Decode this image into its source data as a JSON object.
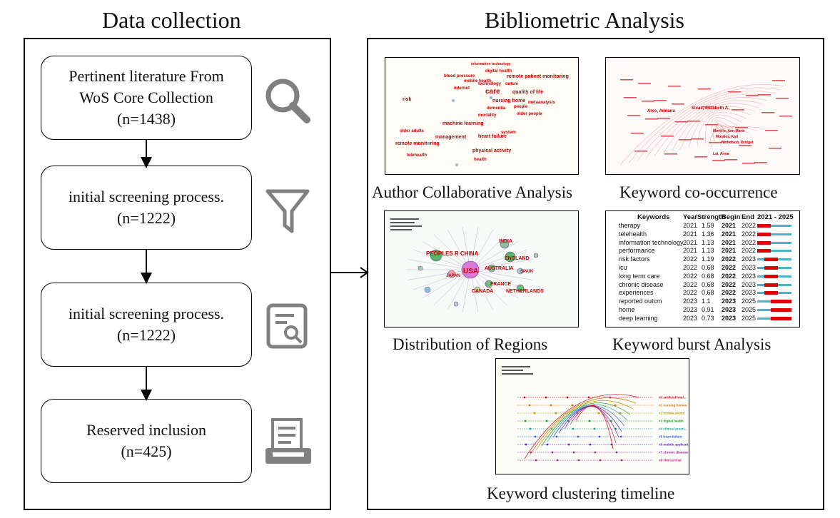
{
  "left": {
    "title": "Data collection",
    "steps": [
      {
        "lines": [
          "Pertinent literature From",
          "WoS Core Collection",
          "(n=1438)"
        ],
        "icon": "magnifier-icon"
      },
      {
        "lines": [
          "initial screening process.",
          "(n=1222)"
        ],
        "icon": "funnel-icon"
      },
      {
        "lines": [
          "initial screening process.",
          "(n=1222)"
        ],
        "icon": "document-search-icon"
      },
      {
        "lines": [
          "Reserved inclusion",
          "(n=425)"
        ],
        "icon": "printer-document-icon"
      }
    ]
  },
  "right": {
    "title": "Bibliometric Analysis",
    "captions": {
      "author": "Author Collaborative Analysis",
      "keyword_cooc": "Keyword co-occurrence",
      "regions": "Distribution of Regions",
      "burst": "Keyword burst Analysis",
      "timeline": "Keyword clustering timeline"
    },
    "author_terms": [
      "information technology",
      "digital health",
      "blood pressure",
      "mobile health",
      "remote patient monitoring",
      "internet",
      "technology",
      "outcm",
      "quality of life",
      "care",
      "nursing home",
      "risk",
      "dementia",
      "people",
      "metaanalysis",
      "older people",
      "mortality",
      "machine learning",
      "older adults",
      "management",
      "heart failure",
      "system",
      "remote monitoring",
      "physical activity",
      "health",
      "telehealth"
    ],
    "cooc_terms": [
      "Sivas, Elizabeth A.",
      "Arce, Adriana",
      "Morello, Ann Marie",
      "Nicholson, Bridget",
      "Lai, Anna",
      "Morales, Karl"
    ],
    "region_labels": [
      "INDIA",
      "PEOPLES R CHINA",
      "ENGLAND",
      "USA",
      "AUSTRALIA",
      "JAPAN",
      "SPAIN",
      "FRANCE",
      "CANADA",
      "NETHERLANDS"
    ],
    "burst_table": {
      "headers": [
        "Keywords",
        "Year",
        "Strength",
        "Begin",
        "End",
        "2021 - 2025"
      ],
      "rows": [
        {
          "keyword": "therapy",
          "year": "2021",
          "strength": "1.59",
          "begin": "2021",
          "end": "2022"
        },
        {
          "keyword": "telehealth",
          "year": "2021",
          "strength": "1.36",
          "begin": "2021",
          "end": "2022"
        },
        {
          "keyword": "information technology",
          "year": "2021",
          "strength": "1.13",
          "begin": "2021",
          "end": "2022"
        },
        {
          "keyword": "performance",
          "year": "2021",
          "strength": "1.13",
          "begin": "2021",
          "end": "2022"
        },
        {
          "keyword": "risk factors",
          "year": "2022",
          "strength": "1.19",
          "begin": "2022",
          "end": "2023"
        },
        {
          "keyword": "icu",
          "year": "2022",
          "strength": "0.68",
          "begin": "2022",
          "end": "2023"
        },
        {
          "keyword": "long term care",
          "year": "2022",
          "strength": "0.68",
          "begin": "2022",
          "end": "2023"
        },
        {
          "keyword": "chronic disease",
          "year": "2022",
          "strength": "0.68",
          "begin": "2022",
          "end": "2023"
        },
        {
          "keyword": "experiences",
          "year": "2022",
          "strength": "0.68",
          "begin": "2022",
          "end": "2023"
        },
        {
          "keyword": "reported outcm",
          "year": "2023",
          "strength": "1.1",
          "begin": "2023",
          "end": "2025"
        },
        {
          "keyword": "home",
          "year": "2023",
          "strength": "0.91",
          "begin": "2023",
          "end": "2025"
        },
        {
          "keyword": "deep learning",
          "year": "2023",
          "strength": "0.73",
          "begin": "2023",
          "end": "2025"
        }
      ]
    },
    "timeline_clusters": [
      "#0 artificial intel...",
      "#1 nursing homes",
      "#2 mobile phone",
      "#3 digital health",
      "#4 clinical practi...",
      "#5 heart failure",
      "#6 mobile applicati...",
      "#7 chronic disease",
      "#8 clinical trial"
    ],
    "colors": {
      "accent_red": "#e00000",
      "burst_blue": "#4fb3c8",
      "icon_gray": "#808080"
    }
  }
}
